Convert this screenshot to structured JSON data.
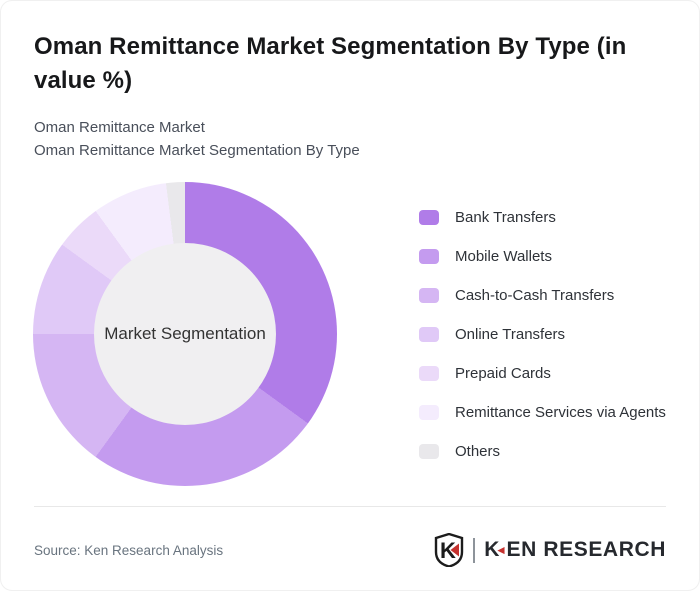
{
  "card": {
    "title": "Oman Remittance Market Segmentation By Type (in value %)",
    "subtitle_line1": "Oman Remittance Market",
    "subtitle_line2": "Oman Remittance Market Segmentation By Type",
    "source": "Source: Ken Research Analysis"
  },
  "logo": {
    "brand": "KEN RESEARCH",
    "mark_letter": "K",
    "accent_red": "#c5312e",
    "text_color": "#26292e"
  },
  "chart_data": {
    "type": "pie",
    "donut": true,
    "title": "Oman Remittance Market Segmentation By Type (in value %)",
    "center_label": "Market Segmentation",
    "categories": [
      "Bank Transfers",
      "Mobile Wallets",
      "Cash-to-Cash Transfers",
      "Online Transfers",
      "Prepaid Cards",
      "Remittance Services via Agents",
      "Others"
    ],
    "values": [
      35,
      25,
      15,
      10,
      5,
      8,
      2
    ],
    "unit": "percent of value",
    "colors": [
      "#b07ce8",
      "#c49bef",
      "#d5b6f3",
      "#e0c9f7",
      "#ebdaf9",
      "#f4ecfd",
      "#e9e8eb"
    ],
    "start_angle_deg": 0,
    "direction": "clockwise",
    "legend_position": "right",
    "center_bg": "#f0eff1"
  }
}
